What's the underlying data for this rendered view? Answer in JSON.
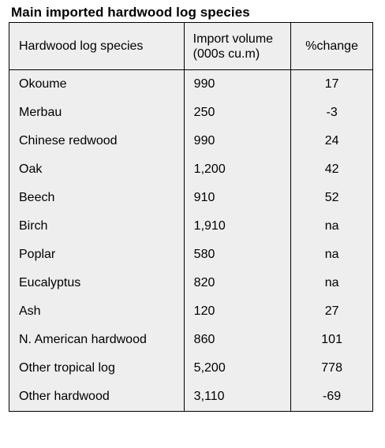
{
  "title": "Main imported hardwood log species",
  "table": {
    "headers": {
      "species": "Hardwood log species",
      "volume_line1": "Import volume",
      "volume_line2": "(000s cu.m)",
      "change": "%change"
    },
    "rows": [
      {
        "species": "Okoume",
        "volume": "990",
        "change": "17"
      },
      {
        "species": "Merbau",
        "volume": "250",
        "change": "-3"
      },
      {
        "species": "Chinese redwood",
        "volume": "990",
        "change": "24"
      },
      {
        "species": "Oak",
        "volume": "1,200",
        "change": "42"
      },
      {
        "species": "Beech",
        "volume": "910",
        "change": "52"
      },
      {
        "species": "Birch",
        "volume": "1,910",
        "change": "na"
      },
      {
        "species": "Poplar",
        "volume": "580",
        "change": "na"
      },
      {
        "species": "Eucalyptus",
        "volume": "820",
        "change": "na"
      },
      {
        "species": "Ash",
        "volume": "120",
        "change": "27"
      },
      {
        "species": "N. American hardwood",
        "volume": "860",
        "change": "101"
      },
      {
        "species": "Other tropical log",
        "volume": "5,200",
        "change": "778"
      },
      {
        "species": "Other hardwood",
        "volume": "3,110",
        "change": "-69"
      }
    ]
  },
  "colors": {
    "table_background": "#eeeeee",
    "border": "#000000",
    "text": "#000000"
  }
}
